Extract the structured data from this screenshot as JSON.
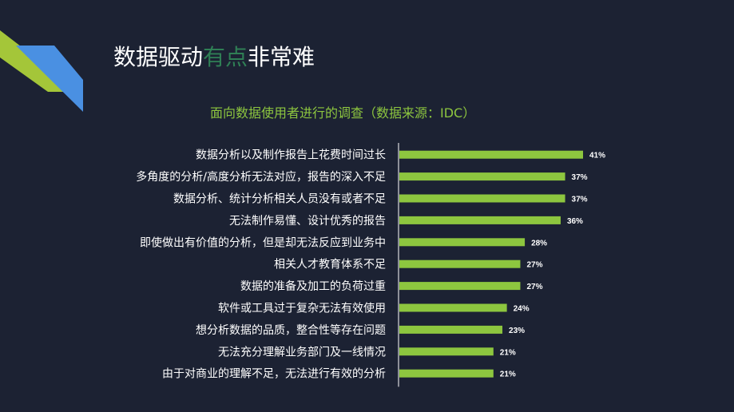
{
  "slide": {
    "title_part1": "数据驱动",
    "title_highlight": "有点",
    "title_part2": "非常难"
  },
  "colors": {
    "background": "#1c2233",
    "bar": "#8dc63f",
    "subtitle": "#8dc63f",
    "deco_green": "#a4c639",
    "deco_blue": "#4a90e2"
  },
  "chart_data": {
    "type": "bar",
    "orientation": "horizontal",
    "title": "面向数据使用者进行的调查（数据来源：IDC）",
    "categories": [
      "数据分析以及制作报告上花费时间过长",
      "多角度的分析/高度分析无法对应，报告的深入不足",
      "数据分析、统计分析相关人员没有或者不足",
      "无法制作易懂、设计优秀的报告",
      "即使做出有价值的分析，但是却无法反应到业务中",
      "相关人才教育体系不足",
      "数据的准备及加工的负荷过重",
      "软件或工具过于复杂无法有效使用",
      "想分析数据的品质，整合性等存在问题",
      "无法充分理解业务部门及一线情况",
      "由于对商业的理解不足，无法进行有效的分析"
    ],
    "values": [
      41,
      37,
      37,
      36,
      28,
      27,
      27,
      24,
      23,
      21,
      21
    ],
    "value_labels": [
      "41%",
      "37%",
      "37%",
      "36%",
      "28%",
      "27%",
      "27%",
      "24%",
      "23%",
      "21%",
      "21%"
    ],
    "unit": "%",
    "grid": false,
    "legend": "none"
  }
}
